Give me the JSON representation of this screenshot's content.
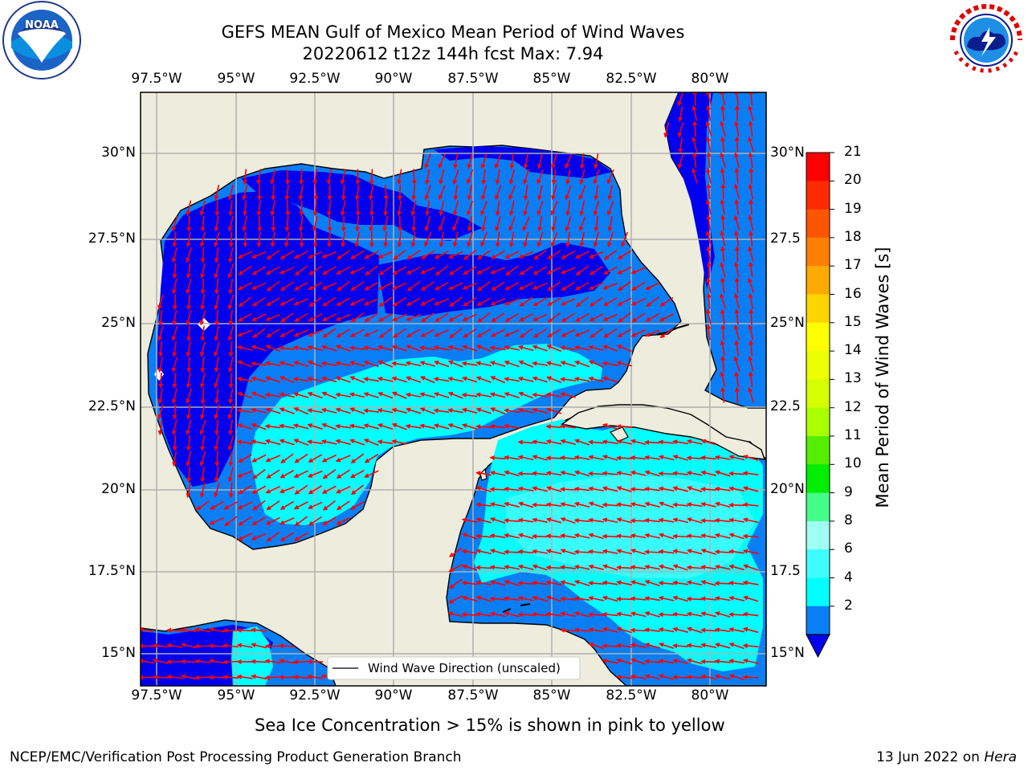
{
  "title": {
    "line1": "GEFS MEAN Gulf of Mexico Mean Period of Wind Waves",
    "line2": "20220612 t12z 144h fcst   Max: 7.94"
  },
  "logos": {
    "left": "NOAA",
    "right": "NATIONAL WEATHER SERVICE"
  },
  "map": {
    "lon_labels": [
      "97.5°W",
      "95°W",
      "92.5°W",
      "90°W",
      "87.5°W",
      "85°W",
      "82.5°W",
      "80°W"
    ],
    "lat_labels_left": [
      "30°N",
      "27.5°N",
      "25°N",
      "22.5°N",
      "20°N",
      "17.5°N",
      "15°N"
    ],
    "lat_labels_right": [
      "30°N",
      "27.5",
      "25°N",
      "22.5",
      "20°N",
      "17.5",
      "15°N"
    ],
    "legend_label": "Wind Wave Direction (unscaled)",
    "colors": {
      "land": "#eeecdc",
      "level_0_2": "#0000ee",
      "level_2_4": "#0a7ef5",
      "level_4_6": "#00ffff",
      "level_6_8": "#3ffcfc",
      "vector": "#ff0000"
    }
  },
  "colorbar": {
    "label": "Mean Period of Wind Waves [s]",
    "ticks": [
      "21",
      "20",
      "19",
      "18",
      "17",
      "16",
      "15",
      "14",
      "13",
      "12",
      "11",
      "10",
      "9",
      "8",
      "6",
      "4",
      "2"
    ],
    "colors": [
      "#ff0000",
      "#ff2a00",
      "#ff5500",
      "#ff8000",
      "#ffaa00",
      "#ffd500",
      "#ffff00",
      "#eaff00",
      "#d5ff00",
      "#aaff00",
      "#55ee00",
      "#00ee00",
      "#44ff88",
      "#9ffff3",
      "#3ffcfc",
      "#00ffff",
      "#0a7ef5",
      "#0000ee"
    ]
  },
  "caption": "Sea Ice Concentration > 15% is shown in pink to yellow",
  "footer": {
    "left": "NCEP/EMC/Verification Post Processing Product Generation Branch",
    "right_prefix": "13 Jun 2022 on ",
    "right_host": "Hera"
  }
}
